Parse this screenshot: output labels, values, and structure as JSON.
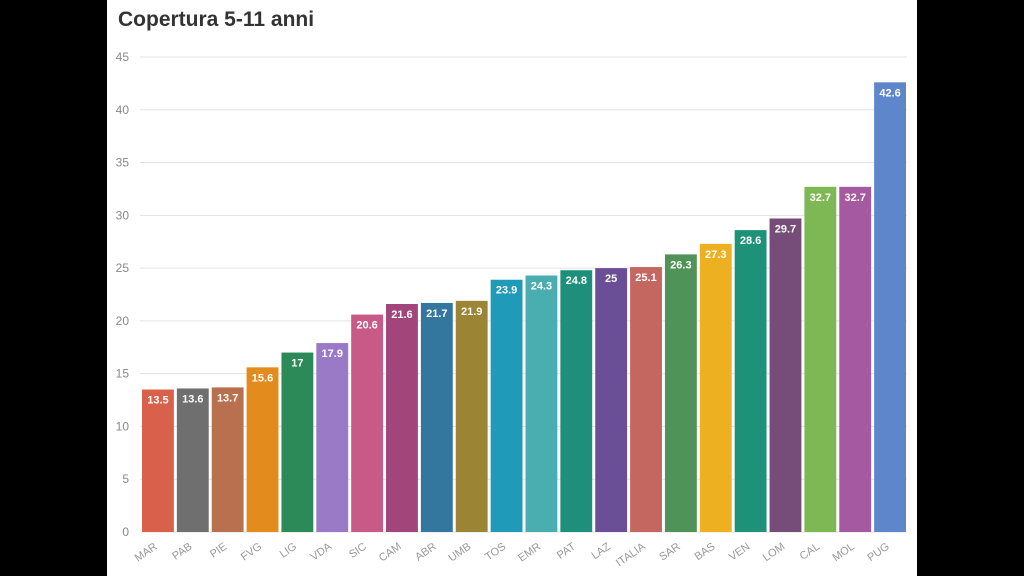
{
  "chart_data": {
    "type": "bar",
    "title": "Copertura 5-11 anni",
    "xlabel": "",
    "ylabel": "",
    "ylim": [
      0,
      45
    ],
    "yticks": [
      0,
      5,
      10,
      15,
      20,
      25,
      30,
      35,
      40,
      45
    ],
    "grid": true,
    "categories": [
      "MAR",
      "PAB",
      "PIE",
      "FVG",
      "LIG",
      "VDA",
      "SIC",
      "CAM",
      "ABR",
      "UMB",
      "TOS",
      "EMR",
      "PAT",
      "LAZ",
      "ITALIA",
      "SAR",
      "BAS",
      "VEN",
      "LOM",
      "CAL",
      "MOL",
      "PUG"
    ],
    "values": [
      13.5,
      13.6,
      13.7,
      15.6,
      17,
      17.9,
      20.6,
      21.6,
      21.7,
      21.9,
      23.9,
      24.3,
      24.8,
      25,
      25.1,
      26.3,
      27.3,
      28.6,
      29.7,
      32.7,
      32.7,
      42.6
    ],
    "colors": [
      "#d9604b",
      "#6f6f6f",
      "#b9704f",
      "#e38b1d",
      "#2c8a58",
      "#9a7ac6",
      "#c75a87",
      "#a1457a",
      "#33779f",
      "#9c8435",
      "#1f9ab9",
      "#4aaeb0",
      "#1d8f7a",
      "#6a4e96",
      "#c56761",
      "#4f9358",
      "#edb021",
      "#1e9278",
      "#764c78",
      "#7db854",
      "#a459a0",
      "#5d86cb"
    ]
  }
}
